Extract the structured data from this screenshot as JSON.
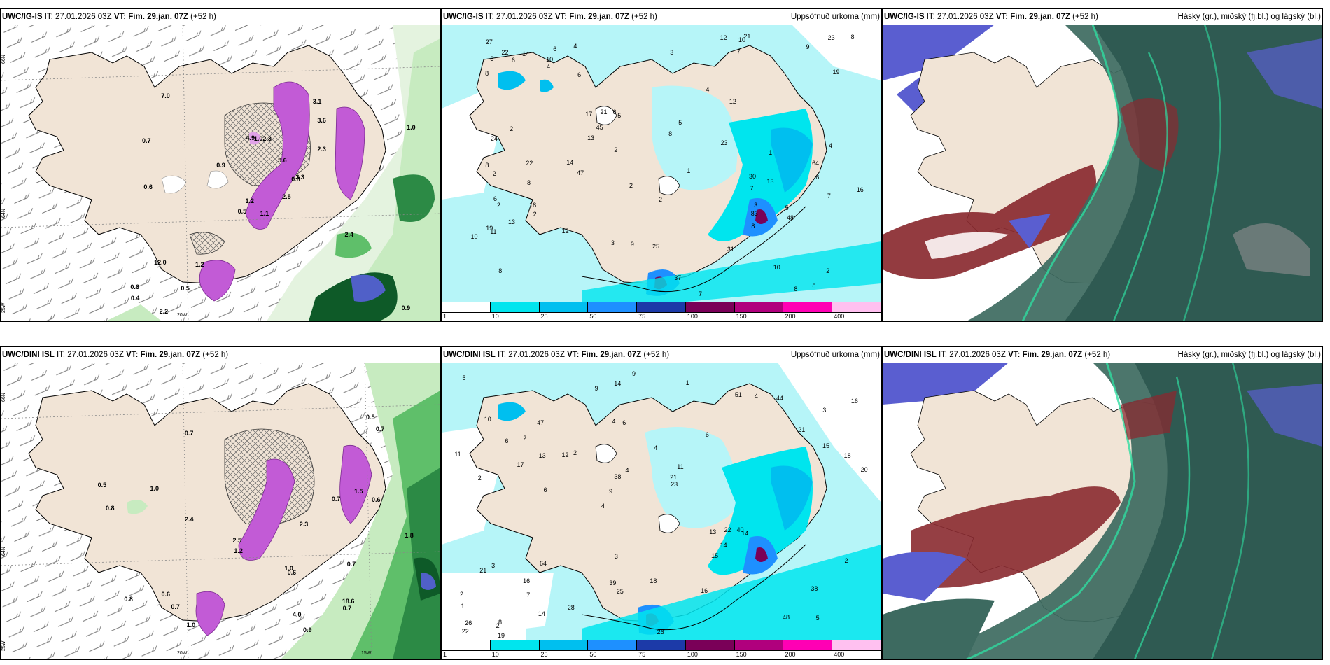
{
  "rows": [
    {
      "model": "UWC/IG-IS",
      "it": "IT: 27.01.2026 03Z",
      "vt_label": "VT:",
      "vt": "Fim. 29.jan. 07Z",
      "lead": "(+52 h)"
    },
    {
      "model": "UWC/DINI ISL",
      "it": "IT: 27.01.2026 03Z",
      "vt_label": "VT:",
      "vt": "Fim. 29.jan. 07Z",
      "lead": "(+52 h)"
    }
  ],
  "panel_titles": {
    "precip": "Uppsöfnuð úrkoma (mm)",
    "clouds": "Háský (gr.), miðský (fj.bl.) og lágský (bl.)"
  },
  "axis_labels": {
    "lat66": "66N",
    "lat64": "64N",
    "lon25": "25W",
    "lon20": "20W",
    "lon15": "15W"
  },
  "colorbar": {
    "ticks": [
      "1",
      "10",
      "25",
      "50",
      "75",
      "100",
      "150",
      "200",
      "400"
    ],
    "colors": [
      "#ffffff",
      "#00e5ee",
      "#00bfef",
      "#1e90ff",
      "#1c3aa8",
      "#7a0058",
      "#b0007d",
      "#ff00b4",
      "#ffc0f0"
    ]
  },
  "colors": {
    "land": "#f1e4d6",
    "sea_precip": "#b6f5f8",
    "light_green": "#c7ebc0",
    "mid_green": "#5fbf6a",
    "dark_green": "#0e5a28",
    "magenta": "#c25bd6",
    "high_cloud": "#4a5a58",
    "mid_cloud": "#8a2a30",
    "low_cloud": "#5a5ed0"
  },
  "snow_labels_top": [
    "1.1",
    "0.7",
    "1.2",
    "0.6",
    "0.8",
    "1.2",
    "3.1",
    "2.3",
    "3.6",
    "2.5",
    "7.0",
    "0.9",
    "0.6",
    "1.0",
    "0.5",
    "2.3",
    "2.2",
    "4.9",
    "5.6",
    "12.0",
    "0.9",
    "0.4",
    "0.5",
    "1.0",
    "3.3",
    "2.4"
  ],
  "snow_labels_bottom": [
    "0.9",
    "0.7",
    "0.6",
    "1.0",
    "1.5",
    "4.0",
    "1.8",
    "2.4",
    "1.2",
    "0.7",
    "0.8",
    "0.5",
    "2.5",
    "1.0",
    "0.7",
    "0.5",
    "0.8",
    "0.7",
    "0.7",
    "0.6",
    "18.6",
    "0.6",
    "1.0",
    "0.7",
    "2.3"
  ],
  "precip_labels_top": [
    "7",
    "6",
    "8",
    "6",
    "5",
    "10",
    "11",
    "7",
    "17",
    "7",
    "8",
    "8",
    "3",
    "2",
    "3",
    "4",
    "2",
    "1",
    "6",
    "2",
    "8",
    "9",
    "13",
    "7",
    "12",
    "10",
    "3",
    "2",
    "4",
    "1",
    "37",
    "31",
    "45",
    "47",
    "64",
    "48",
    "83",
    "22",
    "25",
    "13",
    "19",
    "21",
    "6",
    "9",
    "5",
    "12",
    "10",
    "22",
    "23",
    "24",
    "16",
    "21",
    "23",
    "30",
    "8",
    "8",
    "12",
    "27",
    "8",
    "14",
    "13",
    "6",
    "5",
    "6",
    "3",
    "2",
    "2",
    "18",
    "14",
    "19",
    "4",
    "4",
    "2",
    "6",
    "8",
    "10",
    "2"
  ],
  "precip_labels_bottom": [
    "5",
    "2",
    "3",
    "4",
    "6",
    "8",
    "4",
    "4",
    "3",
    "2",
    "1",
    "7",
    "6",
    "11",
    "14",
    "10",
    "14",
    "20",
    "13",
    "15",
    "9",
    "39",
    "38",
    "47",
    "51",
    "64",
    "48",
    "38",
    "40",
    "26",
    "12",
    "17",
    "15",
    "14",
    "18",
    "21",
    "26",
    "25",
    "23",
    "21",
    "21",
    "16",
    "14",
    "16",
    "16",
    "19",
    "22",
    "18",
    "44",
    "9",
    "6",
    "11",
    "2",
    "4",
    "2",
    "1",
    "9",
    "4",
    "2",
    "3",
    "28",
    "22",
    "13",
    "2",
    "5",
    "6"
  ]
}
